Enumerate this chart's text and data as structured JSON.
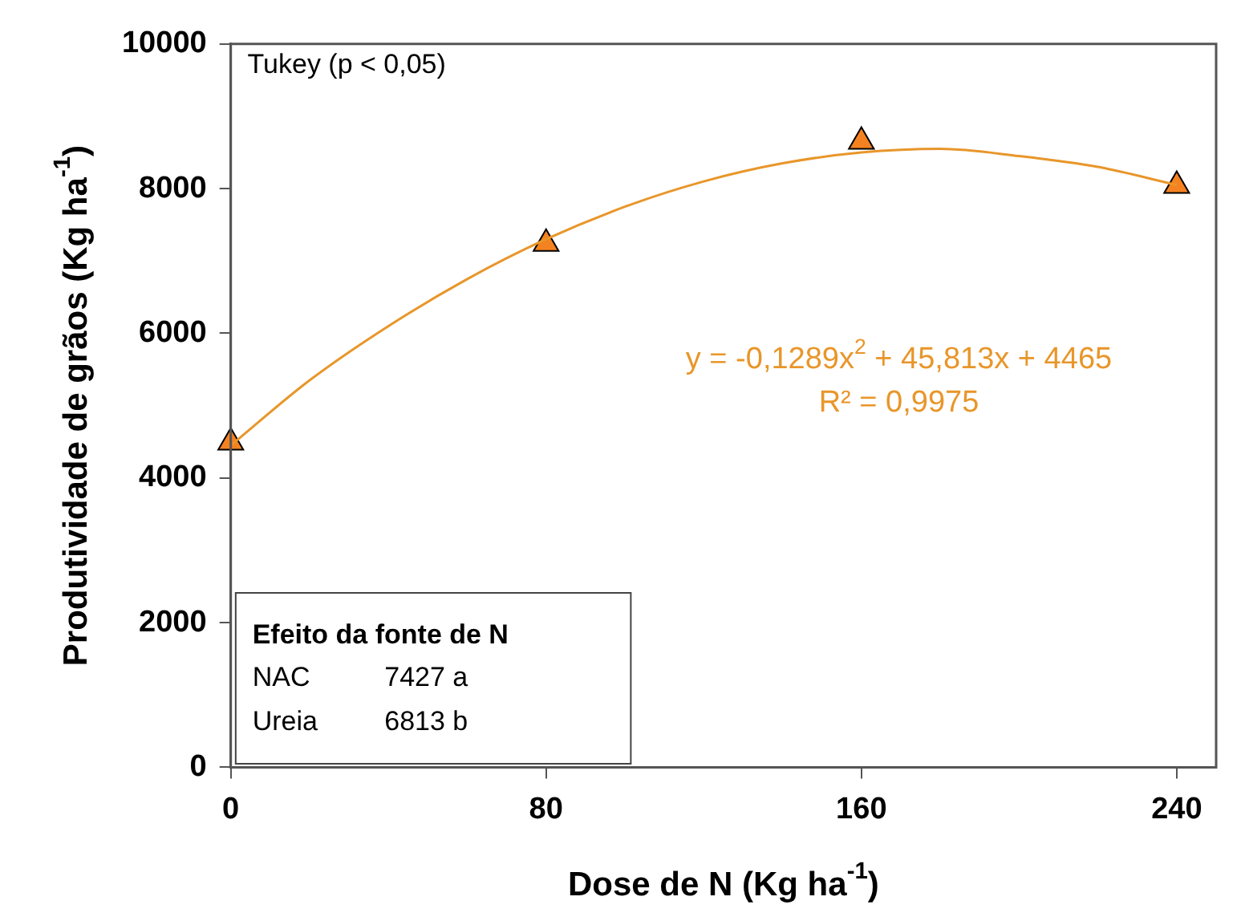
{
  "chart_data": {
    "type": "scatter",
    "xlabel": "Dose de N (Kg ha$^{-1}$)",
    "ylabel": "Produtividade de grãos (Kg ha$^{-1}$)",
    "xlim": [
      0,
      250
    ],
    "xticks": [
      0,
      80,
      160,
      240
    ],
    "ylim": [
      0,
      10000
    ],
    "yticks": [
      0,
      2000,
      4000,
      6000,
      8000,
      10000
    ],
    "grid": false,
    "legend": false,
    "annotations": [
      "Tukey (p < 0,05)",
      "y = -0,1289x$^{2}$ + 45,813x + 4465",
      "R² = 0,9975",
      "Efeito da fonte de N",
      "NAC",
      "7427 a",
      "Ureia",
      "6813 b"
    ],
    "series": [
      {
        "type": "line",
        "color": "#e8962a",
        "marker": "none",
        "x": [
          0,
          20,
          40,
          60,
          80,
          100,
          120,
          140,
          160,
          180,
          200,
          220,
          240
        ],
        "values": [
          4450,
          5350,
          6100,
          6750,
          7300,
          7750,
          8100,
          8350,
          8500,
          8550,
          8450,
          8300,
          8050
        ]
      },
      {
        "type": "scatter",
        "color": "#f58220",
        "marker": "triangle",
        "x": [
          0,
          80,
          160,
          240
        ],
        "values": [
          4490,
          7240,
          8650,
          8040
        ]
      }
    ]
  }
}
